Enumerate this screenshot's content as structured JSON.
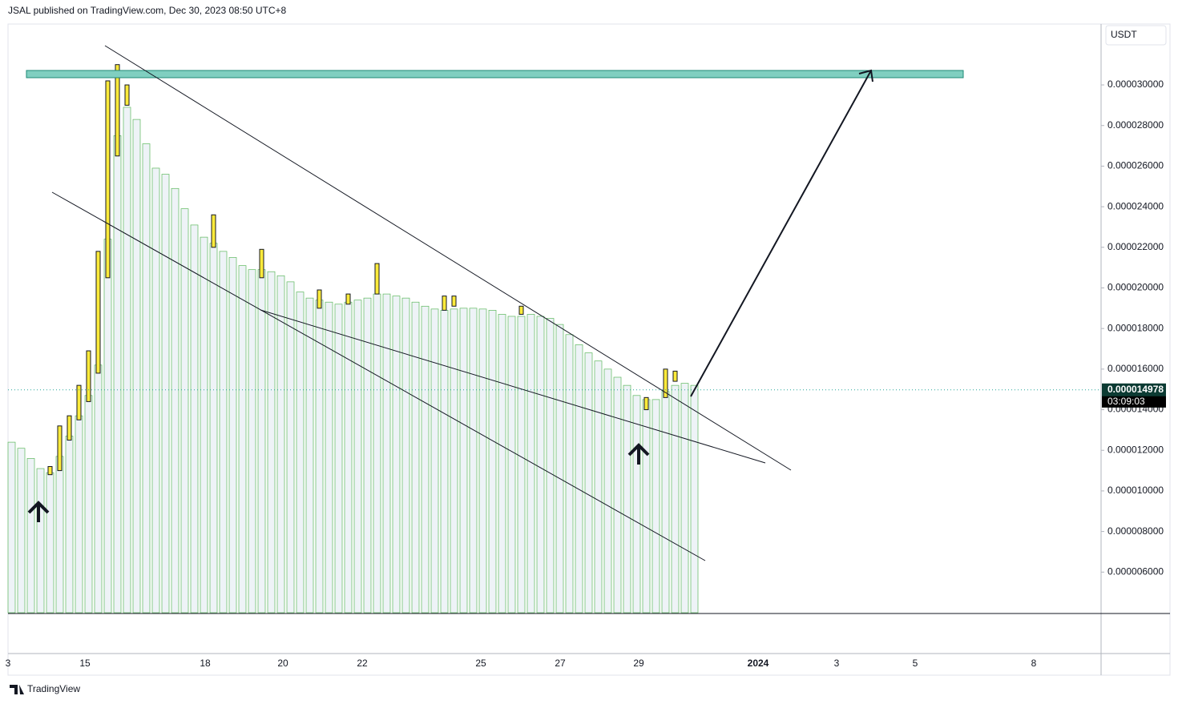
{
  "header": {
    "publisher": "JSAL published on TradingView.com, Dec 30, 2023 08:50 UTC+8",
    "currency": "USDT",
    "brand": "TradingView"
  },
  "chart_data": {
    "type": "columns-candles",
    "ylim": [
      4e-06,
      3.3e-05
    ],
    "yticks": [
      {
        "value": 6e-06,
        "label": "0.000006000"
      },
      {
        "value": 8e-06,
        "label": "0.000008000"
      },
      {
        "value": 1e-05,
        "label": "0.000010000"
      },
      {
        "value": 1.2e-05,
        "label": "0.000012000"
      },
      {
        "value": 1.4e-05,
        "label": "0.000014000"
      },
      {
        "value": 1.6e-05,
        "label": "0.000016000"
      },
      {
        "value": 1.8e-05,
        "label": "0.000018000"
      },
      {
        "value": 2e-05,
        "label": "0.000020000"
      },
      {
        "value": 2.2e-05,
        "label": "0.000022000"
      },
      {
        "value": 2.4e-05,
        "label": "0.000024000"
      },
      {
        "value": 2.6e-05,
        "label": "0.000026000"
      },
      {
        "value": 2.8e-05,
        "label": "0.000028000"
      },
      {
        "value": 3e-05,
        "label": "0.000030000"
      }
    ],
    "xticks": [
      "3",
      "15",
      "18",
      "20",
      "22",
      "25",
      "27",
      "29",
      "2024",
      "3",
      "5",
      "8"
    ],
    "last_price": {
      "value": 1.4978e-05,
      "label": "0.000014978"
    },
    "countdown": "03:09:03",
    "series": [
      {
        "color": "#5cb85c",
        "values": [
          1.24e-05,
          1.21e-05,
          1.16e-05,
          1.11e-05,
          1.09e-05,
          1.17e-05,
          1.27e-05,
          1.37e-05,
          1.47e-05,
          1.62e-05,
          2.24e-05,
          2.75e-05,
          2.89e-05,
          2.83e-05,
          2.71e-05,
          2.59e-05,
          2.56e-05,
          2.49e-05,
          2.39e-05,
          2.31e-05,
          2.25e-05,
          2.22e-05,
          2.18e-05,
          2.15e-05,
          2.11e-05,
          2.09e-05,
          2.09e-05,
          2.08e-05,
          2.06e-05,
          2.03e-05,
          1.98e-05,
          1.95e-05,
          1.94e-05,
          1.93e-05,
          1.92e-05,
          1.93e-05,
          1.94e-05,
          1.95e-05,
          1.97e-05,
          1.97e-05,
          1.96e-05,
          1.95e-05,
          1.93e-05,
          1.91e-05,
          1.896e-05,
          1.89e-05,
          1.896e-05,
          1.9e-05,
          1.9e-05,
          1.896e-05,
          1.89e-05,
          1.87e-05,
          1.86e-05,
          1.86e-05,
          1.87e-05,
          1.86e-05,
          1.85e-05,
          1.82e-05,
          1.77e-05,
          1.72e-05,
          1.68e-05,
          1.64e-05,
          1.6e-05,
          1.56e-05,
          1.52e-05,
          1.47e-05,
          1.45e-05,
          1.45e-05,
          1.49e-05,
          1.52e-05,
          1.53e-05,
          1.52e-05
        ]
      }
    ],
    "candles": {
      "color": "#ffeb3b",
      "open": [
        null,
        null,
        null,
        null,
        1.08e-05,
        1.1e-05,
        1.25e-05,
        1.35e-05,
        1.44e-05,
        1.58e-05,
        2.05e-05,
        2.65e-05,
        2.9e-05,
        null,
        null,
        null,
        null,
        null,
        null,
        null,
        null,
        2.2e-05,
        null,
        null,
        null,
        null,
        2.05e-05,
        null,
        null,
        null,
        null,
        null,
        1.9e-05,
        null,
        null,
        1.92e-05,
        null,
        null,
        1.97e-05,
        null,
        null,
        null,
        null,
        null,
        null,
        1.89e-05,
        1.91e-05,
        null,
        null,
        null,
        null,
        null,
        null,
        1.87e-05,
        null,
        null,
        null,
        null,
        null,
        null,
        null,
        null,
        null,
        null,
        null,
        null,
        1.4e-05,
        null,
        1.46e-05,
        1.54e-05,
        null,
        null
      ],
      "close": [
        null,
        null,
        null,
        null,
        1.12e-05,
        1.32e-05,
        1.37e-05,
        1.52e-05,
        1.69e-05,
        2.18e-05,
        3.02e-05,
        3.1e-05,
        3e-05,
        null,
        null,
        null,
        null,
        null,
        null,
        null,
        null,
        2.36e-05,
        null,
        null,
        null,
        null,
        2.19e-05,
        null,
        null,
        null,
        null,
        null,
        1.99e-05,
        null,
        null,
        1.97e-05,
        null,
        null,
        2.12e-05,
        null,
        null,
        null,
        null,
        null,
        null,
        1.96e-05,
        1.96e-05,
        null,
        null,
        null,
        null,
        null,
        null,
        1.91e-05,
        null,
        null,
        null,
        null,
        null,
        null,
        null,
        null,
        null,
        null,
        null,
        null,
        1.46e-05,
        null,
        1.6e-05,
        1.59e-05,
        null,
        null
      ]
    }
  }
}
